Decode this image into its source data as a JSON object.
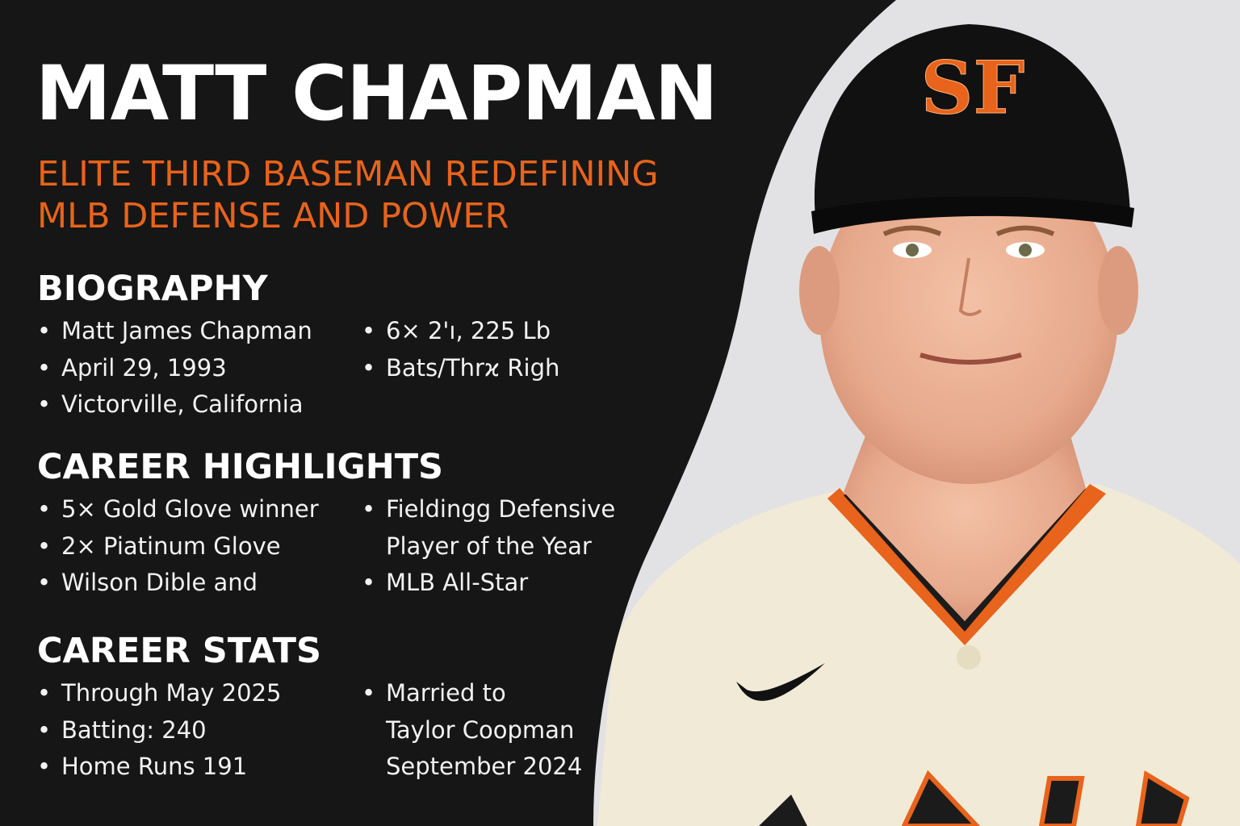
{
  "header": {
    "title": "MATT CHAPMAN",
    "subtitle": "ELITE THIRD BASEMAN REDEFINING MLB DEFENSE AND POWER"
  },
  "colors": {
    "background": "#161616",
    "accent_orange": "#e8631c",
    "heading_white": "#ffffff",
    "photo_backdrop": "#e2e2e4",
    "cap_black": "#111111",
    "jersey_cream": "#f1ead6"
  },
  "biography": {
    "heading": "BIOGRAPHY",
    "left": [
      "Matt James Chapman",
      "April 29, 1993",
      "Victorville, California"
    ],
    "right": [
      "6× 2'ı, 225  Lb",
      "Bats/Thrϰ Righ"
    ]
  },
  "career_highlights": {
    "heading": "CAREER HIGHLIGHTS",
    "left": [
      "5× Gold Glove winner",
      "2× Piatinum Glove",
      "Wilson Dible and"
    ],
    "right_item1_line1": "Fieldingg Defensive",
    "right_item1_line2": "Player of the Year",
    "right_item2": "MLB All-Star"
  },
  "career_stats": {
    "heading": "CAREER STATS",
    "left": [
      "Through May 2025",
      "Batting: 240",
      "Home Runs 191"
    ],
    "right_line1": "Married to",
    "right_line2": "Taylor Coopman",
    "right_line3": "September 2024"
  },
  "photo": {
    "cap_logo_text": "SF",
    "jersey_lettering": "GIANTS",
    "bullet_glyph": "•"
  }
}
